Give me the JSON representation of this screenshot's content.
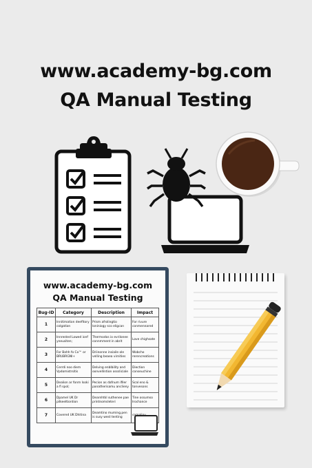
{
  "title": {
    "line1": "www.academy-bg.com",
    "line2": "QA Manual Testing"
  },
  "icons": [
    "clipboard-checklist-icon",
    "bug-icon",
    "laptop-icon",
    "coffee-cup-icon",
    "notepad-icon",
    "pencil-icon"
  ],
  "document": {
    "title1": "www.academy-bg.com",
    "title2": "QA Manual Testing",
    "columns": [
      "Bug-ID",
      "Category",
      "Description",
      "Impact"
    ],
    "rows": [
      {
        "id": "1",
        "category": "Innitimation deefitory colgation",
        "description": "Prism afrolingtio loniniogy sco eligcan",
        "impact": "For rivure conmennared"
      },
      {
        "id": "2",
        "category": "Innrested Lowed ionf yneusiten;",
        "description": "Thermodos io evrilonee connmment in abrit",
        "impact": "Love chighsate"
      },
      {
        "id": "3",
        "category": "For Bahh fo Co™ or BRUBRGNI+",
        "description": "Driinonne insiaile ole velling beaea virnities",
        "impact": "Wobcho rerencreations"
      },
      {
        "id": "4",
        "category": "Cerrdi noo diem Vpdomistrsitis",
        "description": "Delving enblbility and oonvellintion osssliciale",
        "impact": "Diection conseuchine"
      },
      {
        "id": "5",
        "category": "Dealion ar fonm Isoki a fi spol;",
        "description": "Pecion as dafnum ifiler panatherisamu anclieny",
        "impact": "Scal eno & tonvesons"
      },
      {
        "id": "6",
        "category": "Dpamel UK Dr pilkeeltiontion",
        "description": "Dearnhtkl suthenee pae printnomsleteri",
        "impact": "Tine ossumso Irochance"
      },
      {
        "id": "7",
        "category": "Covered UK Dhitina",
        "description": "Deamtino muming.pen is susy west tenting",
        "impact": "comaliny"
      }
    ]
  },
  "colors": {
    "background": "#ebebeb",
    "document_frame": "#354a60",
    "pencil": "#f2b731",
    "coffee": "#4a2614"
  }
}
